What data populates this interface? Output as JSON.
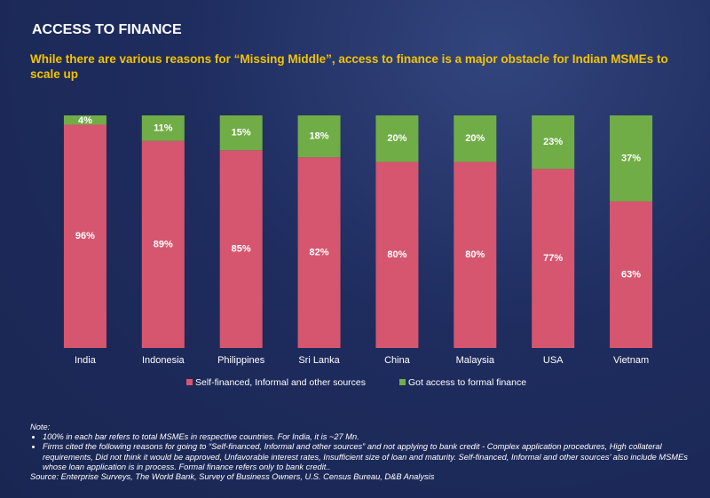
{
  "chart_data": {
    "type": "stacked-bar",
    "title": "ACCESS TO FINANCE",
    "subtitle": "While there are various reasons for “Missing Middle”, access to finance is a major obstacle for Indian MSMEs to scale up",
    "categories": [
      "India",
      "Indonesia",
      "Philippines",
      "Sri Lanka",
      "China",
      "Malaysia",
      "USA",
      "Vietnam"
    ],
    "series": [
      {
        "name": "Self-financed, Informal and other sources",
        "color": "#d6566f",
        "values": [
          96,
          89,
          85,
          82,
          80,
          80,
          77,
          63
        ],
        "value_labels": [
          "96%",
          "89%",
          "85%",
          "82%",
          "80%",
          "80%",
          "77%",
          "63%"
        ]
      },
      {
        "name": "Got access to formal finance",
        "color": "#70ad47",
        "values": [
          4,
          11,
          15,
          18,
          20,
          20,
          23,
          37
        ],
        "value_labels": [
          "4%",
          "11%",
          "15%",
          "18%",
          "20%",
          "20%",
          "23%",
          "37%"
        ]
      }
    ],
    "ylim": [
      0,
      100
    ],
    "legend": "bottom"
  },
  "notes": {
    "heading": "Note:",
    "bullets": [
      "100% in each bar refers to total MSMEs in respective countries. For India, it is ~27 Mn.",
      "Firms cited the following reasons for going to “Self-financed, Informal and other sources” and not applying to bank credit - Complex application procedures, High collateral requirements, Did not think it would be approved, Unfavorable interest rates, Insufficient size of loan and maturity. Self-financed, Informal and other sources’ also include MSMEs whose loan application is in process. Formal finance refers only to bank credit.."
    ],
    "source": "Source: Enterprise Surveys, The World Bank, Survey of Business Owners, U.S. Census Bureau, D&B Analysis"
  }
}
